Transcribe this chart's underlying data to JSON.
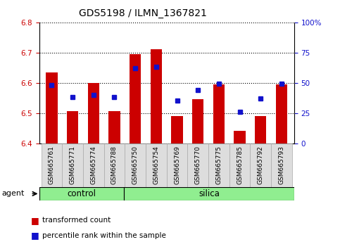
{
  "title": "GDS5198 / ILMN_1367821",
  "samples": [
    "GSM665761",
    "GSM665771",
    "GSM665774",
    "GSM665788",
    "GSM665750",
    "GSM665754",
    "GSM665769",
    "GSM665770",
    "GSM665775",
    "GSM665785",
    "GSM665792",
    "GSM665793"
  ],
  "bar_values": [
    6.635,
    6.505,
    6.6,
    6.505,
    6.695,
    6.71,
    6.49,
    6.545,
    6.595,
    6.44,
    6.49,
    6.595
  ],
  "percentile_dots": [
    48,
    38,
    40,
    38,
    62,
    63,
    35,
    44,
    49,
    26,
    37,
    49
  ],
  "bar_bottom": 6.4,
  "ylim_left": [
    6.4,
    6.8
  ],
  "ylim_right": [
    0,
    100
  ],
  "yticks_left": [
    6.4,
    6.5,
    6.6,
    6.7,
    6.8
  ],
  "yticks_right": [
    0,
    25,
    50,
    75,
    100
  ],
  "ytick_labels_right": [
    "0",
    "25",
    "50",
    "75",
    "100%"
  ],
  "bar_color": "#cc0000",
  "dot_color": "#1111cc",
  "plot_bg": "#ffffff",
  "agent_label": "agent",
  "control_label": "control",
  "silica_label": "silica",
  "group_color": "#90ee90",
  "legend_bar_label": "transformed count",
  "legend_dot_label": "percentile rank within the sample",
  "n_control": 4,
  "n_silica": 8,
  "title_fontsize": 10,
  "axis_fontsize": 8,
  "tick_fontsize": 7.5,
  "sample_fontsize": 6.5
}
